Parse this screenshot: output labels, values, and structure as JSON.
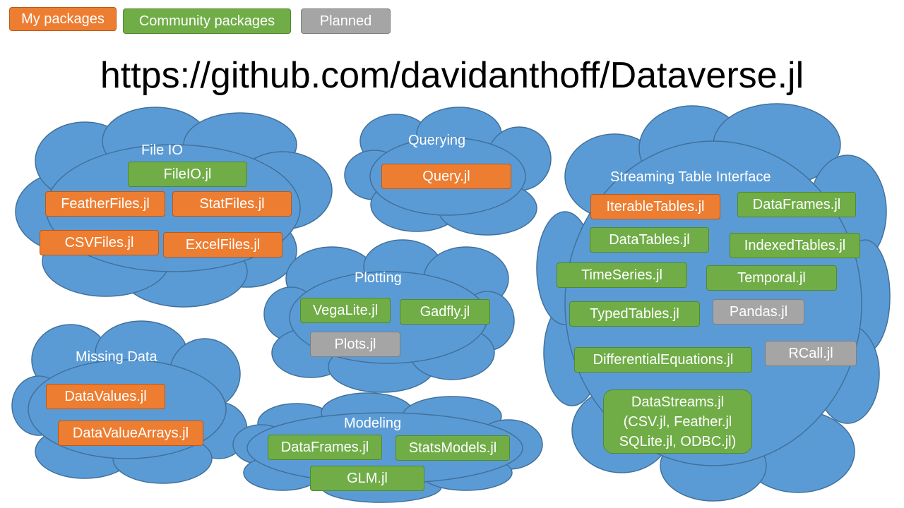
{
  "legend": {
    "mine": "My packages",
    "community": "Community packages",
    "planned": "Planned"
  },
  "title": "https://github.com/davidanthoff/Dataverse.jl",
  "colors": {
    "mine": "#ed7d31",
    "community": "#70ad47",
    "planned": "#a5a5a5",
    "cloud": "#5b9bd5"
  },
  "clouds": {
    "fileio": {
      "title": "File IO",
      "packages": [
        "FileIO.jl",
        "FeatherFiles.jl",
        "StatFiles.jl",
        "CSVFiles.jl",
        "ExcelFiles.jl"
      ]
    },
    "querying": {
      "title": "Querying",
      "packages": [
        "Query.jl"
      ]
    },
    "plotting": {
      "title": "Plotting",
      "packages": [
        "VegaLite.jl",
        "Gadfly.jl",
        "Plots.jl"
      ]
    },
    "missing": {
      "title": "Missing Data",
      "packages": [
        "DataValues.jl",
        "DataValueArrays.jl"
      ]
    },
    "modeling": {
      "title": "Modeling",
      "packages": [
        "DataFrames.jl",
        "StatsModels.jl",
        "GLM.jl"
      ]
    },
    "streaming": {
      "title": "Streaming Table Interface",
      "packages": [
        "IterableTables.jl",
        "DataFrames.jl",
        "DataTables.jl",
        "IndexedTables.jl",
        "TimeSeries.jl",
        "Temporal.jl",
        "TypedTables.jl",
        "Pandas.jl",
        "DifferentialEquations.jl",
        "RCall.jl"
      ],
      "datastreams": [
        "DataStreams.jl",
        "(CSV.jl, Feather.jl",
        "SQLite.jl, ODBC.jl)"
      ]
    }
  }
}
